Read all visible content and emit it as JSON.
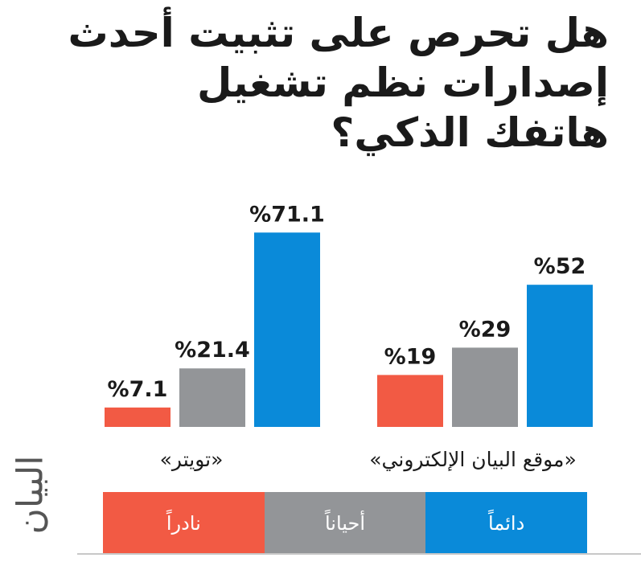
{
  "title_lines": [
    "هل تحرص على تثبيت أحدث",
    "إصدارات نظم تشغيل",
    "هاتفك الذكي؟"
  ],
  "colors": {
    "always": "#0a8ad9",
    "sometimes": "#939598",
    "rarely": "#f25a44"
  },
  "logo_text": "البيان",
  "legend": [
    {
      "key": "always",
      "label": "دائماً"
    },
    {
      "key": "sometimes",
      "label": "أحياناً"
    },
    {
      "key": "rarely",
      "label": "نادراً"
    }
  ],
  "chart_data": {
    "type": "bar",
    "categories": [
      "«موقع البيان الإلكتروني»",
      "«تويتر»"
    ],
    "series": [
      {
        "name": "دائماً",
        "key": "always",
        "values": [
          52,
          71.1
        ],
        "labels": [
          "%52",
          "%71.1"
        ]
      },
      {
        "name": "أحياناً",
        "key": "sometimes",
        "values": [
          29,
          21.4
        ],
        "labels": [
          "%29",
          "%21.4"
        ]
      },
      {
        "name": "نادراً",
        "key": "rarely",
        "values": [
          19,
          7.1
        ],
        "labels": [
          "%19",
          "%7.1"
        ]
      }
    ],
    "unit": "%",
    "ylim": [
      0,
      100
    ],
    "legend_position": "bottom"
  }
}
